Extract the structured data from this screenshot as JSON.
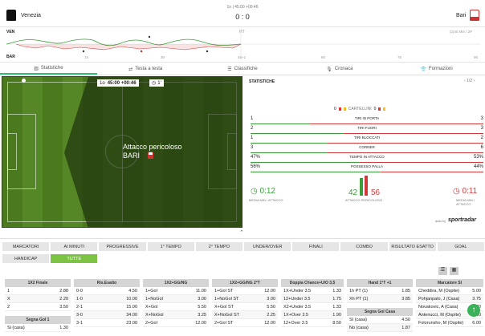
{
  "header": {
    "home": "Venezia",
    "away": "Bari",
    "time": "1o | 45:00 +00:46",
    "score": "0 : 0"
  },
  "momentum": {
    "home_abbr": "VEN",
    "away_abbr": "BAR",
    "ht": "HT",
    "ft_label": "(2)45 Min / 2P",
    "ticks": [
      "0",
      "15",
      "30",
      "45+1",
      "60",
      "75",
      "90"
    ]
  },
  "tabs": [
    "Statistiche",
    "Testa a testa",
    "Classifiche",
    "Cronaca",
    "Formazioni"
  ],
  "pitch": {
    "clock_half": "1o",
    "clock": "45:00 +00:46",
    "clock_sub": "1'",
    "event": "Attacco pericoloso",
    "team": "BARI"
  },
  "stats": {
    "title": "STATISTICHE",
    "pager": "1/2",
    "cards_home": "0",
    "cards_label": "CARTELLINI",
    "cards_away": "0",
    "rows": [
      {
        "label": "TIRI IN PORTA",
        "home": "1",
        "away": "3",
        "home_pct": 0.25
      },
      {
        "label": "TIRI FUORI",
        "home": "2",
        "away": "3",
        "home_pct": 0.4
      },
      {
        "label": "TIRI BLOCCATI",
        "home": "1",
        "away": "2",
        "home_pct": 0.33
      },
      {
        "label": "CORNER",
        "home": "3",
        "away": "6",
        "home_pct": 0.33
      },
      {
        "label": "TEMPO IN ATTACCO",
        "home": "47%",
        "away": "53%",
        "home_pct": 0.47
      },
      {
        "label": "POSSESSO PALLA",
        "home": "56%",
        "away": "44%",
        "home_pct": 0.56
      }
    ],
    "home_attack_time": "0:12",
    "away_attack_time": "0:11",
    "attack_time_label": "MEDIA MIN / ATTACCO",
    "danger_home": "42",
    "danger_away": "56",
    "danger_label": "ATTACCO PERICOLOSO",
    "powered": "data by",
    "brand": "sportradar"
  },
  "colors": {
    "accent": "#7cc243",
    "home": "#3a9e3a",
    "away": "#d23a3a"
  },
  "market_tabs_row1": [
    "MARCATORI",
    "AI MINUTI",
    "PROGRESSIVE",
    "1° TEMPO",
    "2° TEMPO",
    "UNDER/OVER",
    "FINALI",
    "COMBO",
    "RISULTATO ESATTO",
    "GOAL"
  ],
  "market_tabs_row2": [
    "HANDICAP",
    "TUTTE"
  ],
  "markets": [
    {
      "title": "1X2 Finale",
      "rows": [
        [
          "1",
          "2.88"
        ],
        [
          "X",
          "2.20"
        ],
        [
          "2",
          "3.50"
        ]
      ],
      "sub_title": "Segna Gol 1",
      "sub_rows": [
        [
          "Si (casa)",
          "1.30"
        ]
      ]
    },
    {
      "title": "Ris.Esatto",
      "rows": [
        [
          "0-0",
          "4.50"
        ],
        [
          "1-0",
          "10.00"
        ],
        [
          "2-1",
          "15.00"
        ],
        [
          "3-0",
          "34.00"
        ],
        [
          "3-1",
          "23.00"
        ]
      ]
    },
    {
      "title": "1X2+GG/NG",
      "rows": [
        [
          "1+Gol",
          "11.00"
        ],
        [
          "1+NoGol",
          "3.00"
        ],
        [
          "X+Gol",
          "5.50"
        ],
        [
          "X+NoGol",
          "3.25"
        ],
        [
          "2+Gol",
          "12.00"
        ]
      ]
    },
    {
      "title": "1X2+GG/NG 2°T",
      "rows": [
        [
          "1+Gol ST",
          "12.00"
        ],
        [
          "1+NoGol ST",
          "3.00"
        ],
        [
          "X+Gol ST",
          "5.50"
        ],
        [
          "X+NoGol ST",
          "2.25"
        ],
        [
          "2+Gol ST",
          "12.00"
        ]
      ]
    },
    {
      "title": "Doppia Chance+U/O 3,5",
      "rows": [
        [
          "1X+Under 3.5",
          "1.33"
        ],
        [
          "12+Under 3.5",
          "1.75"
        ],
        [
          "X2+Under 3.5",
          "1.33"
        ],
        [
          "1X+Over 3.5",
          "1.90"
        ],
        [
          "12+Over 3.5",
          "8.50"
        ]
      ]
    },
    {
      "title": "Hand 1°T +1",
      "rows": [
        [
          "1h PT (1)",
          "1.85"
        ],
        [
          "Xh PT (1)",
          "3.85"
        ]
      ],
      "sub_title": "Segna Gol Casa",
      "sub_rows": [
        [
          "SI (casa)",
          "4.50"
        ],
        [
          "No (casa)",
          "1.87"
        ]
      ]
    },
    {
      "title": "Marcatore SI",
      "rows": [
        [
          "Cheddira, M (Ospite)",
          "5.00"
        ],
        [
          "Pohjanpalo, J (Casa)",
          "3.75"
        ],
        [
          "Novakovic, A (Casa)",
          "6.00"
        ],
        [
          "Antenucci, M (Ospite)",
          "6.00"
        ],
        [
          "Folorunsho, M (Ospite)",
          "6.00"
        ]
      ]
    }
  ]
}
